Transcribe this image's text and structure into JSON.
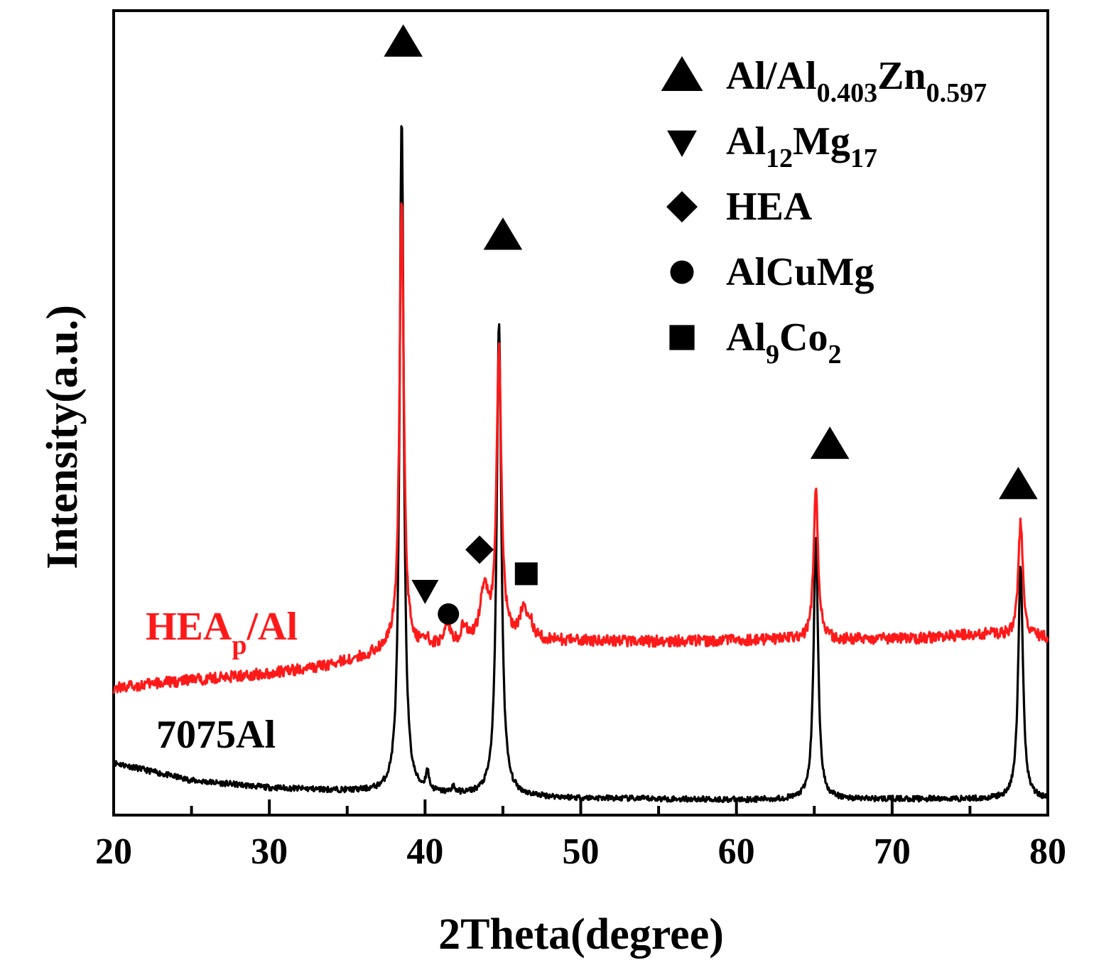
{
  "chart_data": {
    "type": "line",
    "title": "",
    "xlabel": "2Theta(degree)",
    "ylabel": "Intensity(a.u.)",
    "xlim": [
      20,
      80
    ],
    "ylim": [
      0,
      100
    ],
    "x_ticks": [
      "20",
      "30",
      "40",
      "50",
      "60",
      "70",
      "80"
    ],
    "y_ticks": [],
    "grid": false,
    "legend": {
      "location": "top-right",
      "entries": [
        {
          "marker": "triangle-up",
          "text": "Al/Al",
          "sub1": "0.403",
          "mid": "Zn",
          "sub2": "0.597"
        },
        {
          "marker": "triangle-down",
          "text": "Al",
          "sub1": "12",
          "mid": "Mg",
          "sub2": "17"
        },
        {
          "marker": "diamond",
          "text": "HEA"
        },
        {
          "marker": "circle",
          "text": "AlCuMg"
        },
        {
          "marker": "square",
          "text": "Al",
          "sub1": "9",
          "mid": "Co",
          "sub2": "2"
        }
      ]
    },
    "series": [
      {
        "name": "7075Al",
        "color": "#000000",
        "baseline": [
          [
            20,
            6.5
          ],
          [
            25,
            4.3
          ],
          [
            30,
            3.4
          ],
          [
            35,
            3.0
          ],
          [
            40,
            2.6
          ],
          [
            50,
            2.1
          ],
          [
            60,
            1.9
          ],
          [
            70,
            2.0
          ],
          [
            80,
            2.0
          ]
        ],
        "peaks": [
          {
            "x": 38.5,
            "height": 84,
            "width": 0.16
          },
          {
            "x": 40.15,
            "height": 2.4,
            "width": 0.12
          },
          {
            "x": 41.8,
            "height": 0.8,
            "width": 0.12
          },
          {
            "x": 44.75,
            "height": 59,
            "width": 0.18
          },
          {
            "x": 65.1,
            "height": 33,
            "width": 0.17
          },
          {
            "x": 78.25,
            "height": 29,
            "width": 0.18
          }
        ],
        "noise": 0.35
      },
      {
        "name": "HEA",
        "name_sub": "p",
        "name_suffix": "/Al",
        "color": "#ff1a1a",
        "baseline": [
          [
            20,
            15.8
          ],
          [
            25,
            16.8
          ],
          [
            30,
            17.6
          ],
          [
            33,
            18.3
          ],
          [
            36,
            19.6
          ],
          [
            38,
            21.0
          ],
          [
            40,
            20.7
          ],
          [
            43,
            21.5
          ],
          [
            46,
            22.0
          ],
          [
            48,
            21.7
          ],
          [
            55,
            21.6
          ],
          [
            62,
            21.8
          ],
          [
            66,
            21.8
          ],
          [
            72,
            22.0
          ],
          [
            76,
            22.5
          ],
          [
            80,
            22.0
          ]
        ],
        "peaks": [
          {
            "x": 38.5,
            "height": 56,
            "width": 0.16
          },
          {
            "x": 40.1,
            "height": 1.2,
            "width": 0.12
          },
          {
            "x": 41.4,
            "height": 2.6,
            "width": 0.22
          },
          {
            "x": 42.5,
            "height": 2.0,
            "width": 0.18
          },
          {
            "x": 43.8,
            "height": 6.5,
            "width": 0.28
          },
          {
            "x": 44.75,
            "height": 36,
            "width": 0.18
          },
          {
            "x": 46.3,
            "height": 3.4,
            "width": 0.22
          },
          {
            "x": 46.75,
            "height": 2.0,
            "width": 0.2
          },
          {
            "x": 65.1,
            "height": 19,
            "width": 0.17
          },
          {
            "x": 78.25,
            "height": 14,
            "width": 0.18
          }
        ],
        "noise": 0.7
      }
    ],
    "phase_markers": [
      {
        "phase": "Al/Al0.403Zn0.597",
        "marker": "triangle-up",
        "x": 38.6,
        "y": 96
      },
      {
        "phase": "Al/Al0.403Zn0.597",
        "marker": "triangle-up",
        "x": 45.0,
        "y": 72
      },
      {
        "phase": "Al/Al0.403Zn0.597",
        "marker": "triangle-up",
        "x": 66.0,
        "y": 46
      },
      {
        "phase": "Al/Al0.403Zn0.597",
        "marker": "triangle-up",
        "x": 78.1,
        "y": 41
      },
      {
        "phase": "Al12Mg17",
        "marker": "triangle-down",
        "x": 40.0,
        "y": 28
      },
      {
        "phase": "AlCuMg",
        "marker": "circle",
        "x": 41.5,
        "y": 25
      },
      {
        "phase": "HEA",
        "marker": "diamond",
        "x": 43.5,
        "y": 33
      },
      {
        "phase": "Al9Co2",
        "marker": "square",
        "x": 46.5,
        "y": 30
      }
    ]
  }
}
